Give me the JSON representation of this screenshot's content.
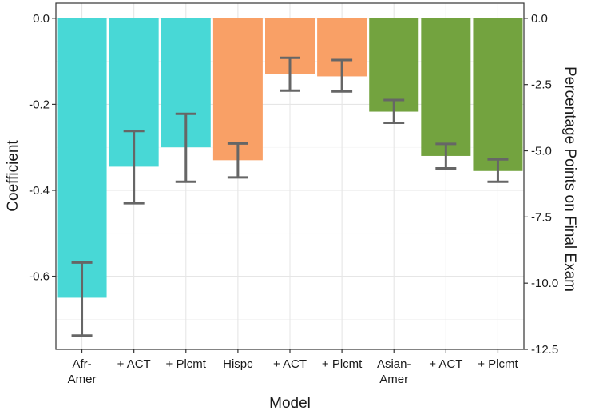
{
  "chart_data": {
    "type": "bar",
    "xlabel": "Model",
    "ylabel": "Coefficient",
    "y2label": "Percentage Points on Final Exam",
    "categories": [
      [
        "Afr-",
        "Amer"
      ],
      [
        "+ ACT"
      ],
      [
        "+ Plcmt"
      ],
      [
        "Hispc"
      ],
      [
        "+ ACT"
      ],
      [
        "+ Plcmt"
      ],
      [
        "Asian-",
        "Amer"
      ],
      [
        "+ ACT"
      ],
      [
        "+ Plcmt"
      ]
    ],
    "values": [
      -0.65,
      -0.345,
      -0.3,
      -0.33,
      -0.13,
      -0.135,
      -0.217,
      -0.32,
      -0.355
    ],
    "error_low": [
      -0.738,
      -0.43,
      -0.38,
      -0.37,
      -0.168,
      -0.17,
      -0.243,
      -0.349,
      -0.38
    ],
    "error_high": [
      -0.568,
      -0.262,
      -0.222,
      -0.291,
      -0.092,
      -0.097,
      -0.19,
      -0.292,
      -0.328
    ],
    "bar_colors": [
      "#48d8d6",
      "#48d8d6",
      "#48d8d6",
      "#f9a066",
      "#f9a066",
      "#f9a066",
      "#73a33f",
      "#73a33f",
      "#73a33f"
    ],
    "error_color": "#666666",
    "ylim": [
      -0.77,
      0.035
    ],
    "yticks": [
      0.0,
      -0.2,
      -0.4,
      -0.6
    ],
    "ytick_labels": [
      "0.0",
      "-0.2",
      "-0.4",
      "-0.6"
    ],
    "y2lim": [
      -12.5,
      0.57
    ],
    "y2ticks": [
      0.0,
      -2.5,
      -5.0,
      -7.5,
      -10.0,
      -12.5
    ],
    "y2tick_labels": [
      "0.0",
      "-2.5",
      "-5.0",
      "-7.5",
      "-10.0",
      "-12.5"
    ],
    "grid": true,
    "legend": "none"
  }
}
